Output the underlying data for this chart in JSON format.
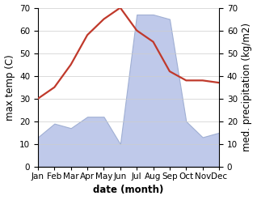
{
  "months": [
    "Jan",
    "Feb",
    "Mar",
    "Apr",
    "May",
    "Jun",
    "Jul",
    "Aug",
    "Sep",
    "Oct",
    "Nov",
    "Dec"
  ],
  "temperature": [
    30,
    35,
    45,
    58,
    65,
    70,
    60,
    55,
    42,
    38,
    38,
    37
  ],
  "precipitation": [
    13,
    19,
    17,
    22,
    22,
    10,
    67,
    67,
    65,
    20,
    13,
    15
  ],
  "temp_color": "#c0392b",
  "precip_color": "#b8c4e8",
  "precip_edge_color": "#9aaad0",
  "background_color": "#ffffff",
  "ylim": [
    0,
    70
  ],
  "ylabel_left": "max temp (C)",
  "ylabel_right": "med. precipitation (kg/m2)",
  "xlabel": "date (month)",
  "tick_fontsize": 7.5,
  "label_fontsize": 8.5,
  "xlabel_fontsize": 8.5,
  "line_width": 1.6,
  "figsize": [
    3.18,
    2.47
  ],
  "dpi": 100
}
